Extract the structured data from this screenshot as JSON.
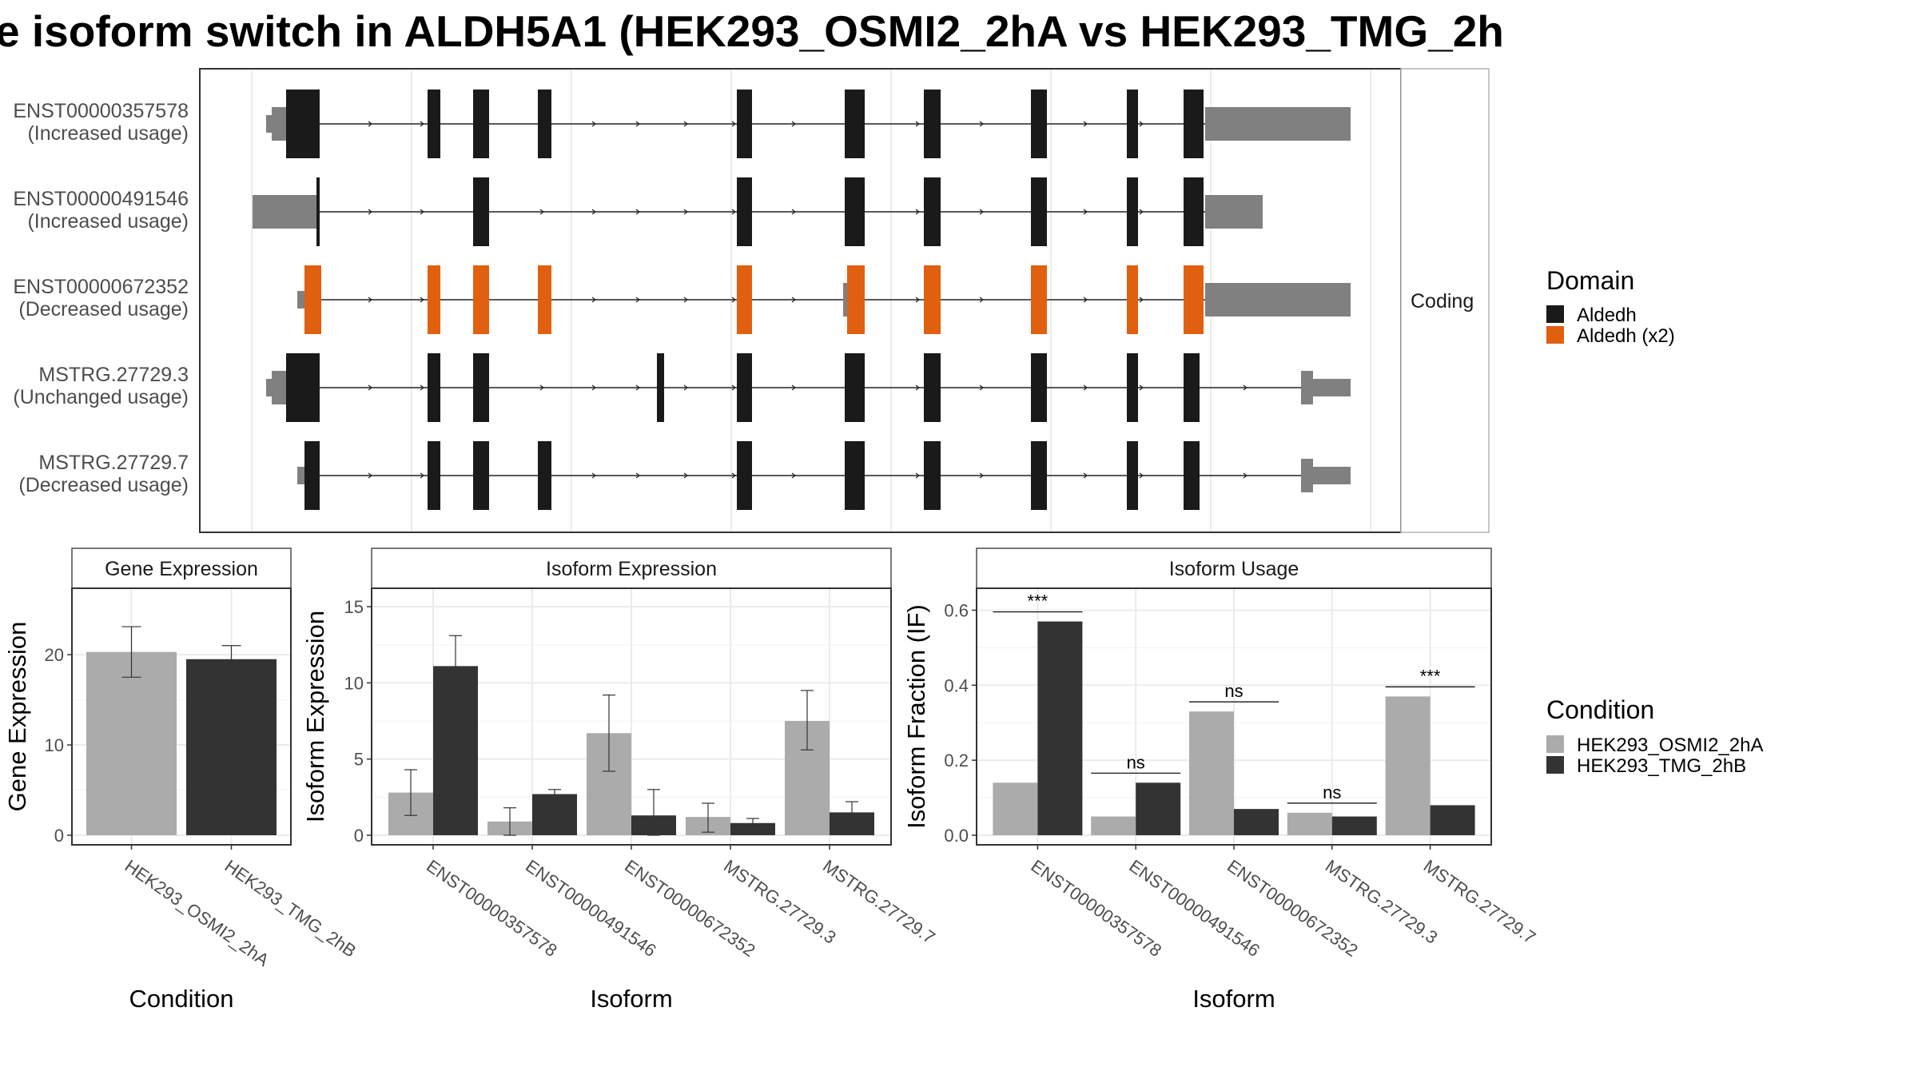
{
  "title": "e isoform switch in ALDH5A1 (HEK293_OSMI2_2hA vs HEK293_TMG_2h",
  "colors": {
    "domain_aldedh": "#1a1a1a",
    "domain_aldedh_x2": "#e06010",
    "utr": "#808080",
    "cond_a": "#ababab",
    "cond_b": "#333333"
  },
  "transcripts": [
    {
      "id": "ENST00000357578",
      "usage": "(Increased usage)"
    },
    {
      "id": "ENST00000491546",
      "usage": "(Increased usage)"
    },
    {
      "id": "ENST00000672352",
      "usage": "(Decreased usage)"
    },
    {
      "id": "MSTRG.27729.3",
      "usage": "(Unchanged usage)"
    },
    {
      "id": "MSTRG.27729.7",
      "usage": "(Decreased usage)"
    }
  ],
  "coding_strip": "Coding",
  "domain_legend": {
    "title": "Domain",
    "items": [
      {
        "label": "Aldedh",
        "color": "#1a1a1a"
      },
      {
        "label": "Aldedh (x2)",
        "color": "#e06010"
      }
    ]
  },
  "condition_legend": {
    "title": "Condition",
    "items": [
      {
        "label": "HEK293_OSMI2_2hA",
        "color": "#ababab"
      },
      {
        "label": "HEK293_TMG_2hB",
        "color": "#333333"
      }
    ]
  },
  "chart_data": [
    {
      "type": "bar",
      "title": "Gene Expression",
      "xlabel": "Condition",
      "ylabel": "Gene Expression",
      "categories": [
        "HEK293_OSMI2_2hA",
        "HEK293_TMG_2hB"
      ],
      "values": [
        20.3,
        19.5
      ],
      "errors": [
        [
          17.5,
          23.1
        ],
        [
          18.0,
          21.0
        ]
      ],
      "ylim": [
        0,
        27
      ],
      "yticks": [
        0,
        10,
        20
      ],
      "grid": true
    },
    {
      "type": "bar",
      "title": "Isoform Expression",
      "xlabel": "Isoform",
      "ylabel": "Isoform Expression",
      "categories": [
        "ENST00000357578",
        "ENST00000491546",
        "ENST00000672352",
        "MSTRG.27729.3",
        "MSTRG.27729.7"
      ],
      "series": [
        {
          "name": "HEK293_OSMI2_2hA",
          "values": [
            2.8,
            0.9,
            6.7,
            1.2,
            7.5
          ],
          "errors": [
            [
              1.3,
              4.3
            ],
            [
              0.0,
              1.8
            ],
            [
              4.2,
              9.2
            ],
            [
              0.2,
              2.1
            ],
            [
              5.6,
              9.5
            ]
          ]
        },
        {
          "name": "HEK293_TMG_2hB",
          "values": [
            11.1,
            2.7,
            1.3,
            0.8,
            1.5
          ],
          "errors": [
            [
              9.1,
              13.1
            ],
            [
              2.3,
              3.0
            ],
            [
              0.0,
              3.0
            ],
            [
              0.5,
              1.1
            ],
            [
              0.8,
              2.2
            ]
          ]
        }
      ],
      "ylim": [
        0,
        16
      ],
      "yticks": [
        0,
        5,
        10,
        15
      ],
      "grid": true
    },
    {
      "type": "bar",
      "title": "Isoform Usage",
      "xlabel": "Isoform",
      "ylabel": "Isoform Fraction (IF)",
      "categories": [
        "ENST00000357578",
        "ENST00000491546",
        "ENST00000672352",
        "MSTRG.27729.3",
        "MSTRG.27729.7"
      ],
      "series": [
        {
          "name": "HEK293_OSMI2_2hA",
          "values": [
            0.14,
            0.05,
            0.33,
            0.06,
            0.37
          ]
        },
        {
          "name": "HEK293_TMG_2hB",
          "values": [
            0.57,
            0.14,
            0.07,
            0.05,
            0.08
          ]
        }
      ],
      "significance": [
        "***",
        "ns",
        "ns",
        "ns",
        "***"
      ],
      "ylim": [
        0,
        0.65
      ],
      "yticks": [
        0.0,
        0.2,
        0.4,
        0.6
      ],
      "grid": true
    }
  ]
}
